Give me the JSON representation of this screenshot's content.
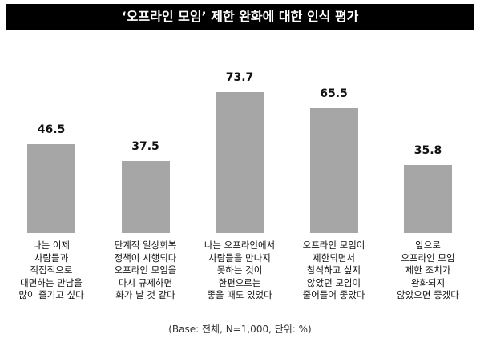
{
  "chart_data": {
    "type": "bar",
    "title": "‘오프라인 모임’ 제한 완화에 대한 인식 평가",
    "categories": [
      "나는 이제\n사람들과\n직접적으로\n대면하는 만남을\n많이 즐기고 싶다",
      "단계적 일상회복\n정책이 시행되다\n오프라인 모임을\n다시 규제하면\n화가 날 것 같다",
      "나는 오프라인에서\n사람들을 만나지\n못하는 것이\n한편으로는\n좋을 때도 있었다",
      "오프라인 모임이\n제한되면서\n참석하고 싶지\n않았던 모임이\n줄어들어 좋았다",
      "앞으로\n오프라인 모임\n제한 조치가\n완화되지\n않았으면 좋겠다"
    ],
    "values": [
      46.5,
      37.5,
      73.7,
      65.5,
      35.8
    ],
    "color": "#a6a6a6",
    "note": "(Base: 전체, N=1,000, 단위: %)"
  }
}
